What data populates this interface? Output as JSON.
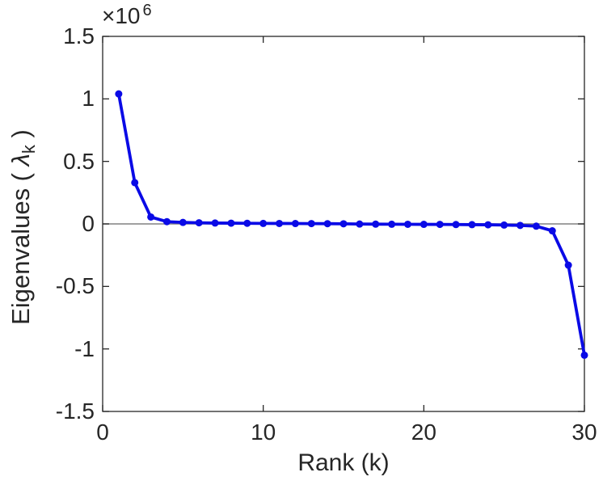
{
  "figure": {
    "background": "#ffffff"
  },
  "chart_data": {
    "type": "line",
    "title": "",
    "xlabel": "Rank (k)",
    "ylabel": "Eigenvalues ( λk )",
    "ylabel_parts": {
      "prefix": "Eigenvalues ( ",
      "symbol": "λ",
      "subscript": "k",
      "suffix": " )"
    },
    "y_axis_multiplier": {
      "base": "×10",
      "exponent": "6"
    },
    "series": [
      {
        "name": "eigenvalues",
        "x": [
          1,
          2,
          3,
          4,
          5,
          6,
          7,
          8,
          9,
          10,
          11,
          12,
          13,
          14,
          15,
          16,
          17,
          18,
          19,
          20,
          21,
          22,
          23,
          24,
          25,
          26,
          27,
          28,
          29,
          30
        ],
        "values": [
          1040000,
          330000,
          55000,
          18000,
          12000,
          9000,
          7000,
          6000,
          5000,
          4000,
          3500,
          3000,
          2500,
          2000,
          1000,
          -1000,
          -2000,
          -2500,
          -3000,
          -3500,
          -4000,
          -5000,
          -6000,
          -7000,
          -9000,
          -12000,
          -18000,
          -55000,
          -330000,
          -1050000
        ]
      }
    ],
    "xlim": [
      0,
      30
    ],
    "ylim": [
      -1500000,
      1500000
    ],
    "x_ticks": [
      0,
      10,
      20,
      30
    ],
    "x_tick_labels": [
      "0",
      "10",
      "20",
      "30"
    ],
    "y_ticks": [
      -1500000,
      -1000000,
      -500000,
      0,
      500000,
      1000000,
      1500000
    ],
    "y_tick_labels": [
      "-1.5",
      "-1",
      "-0.5",
      "0",
      "0.5",
      "1",
      "1.5"
    ],
    "grid": false,
    "legend": false,
    "marker": "filled-circle",
    "line_color": "#0a0ae6",
    "axis_color": "#262626",
    "zero_line_color": "#808080"
  }
}
